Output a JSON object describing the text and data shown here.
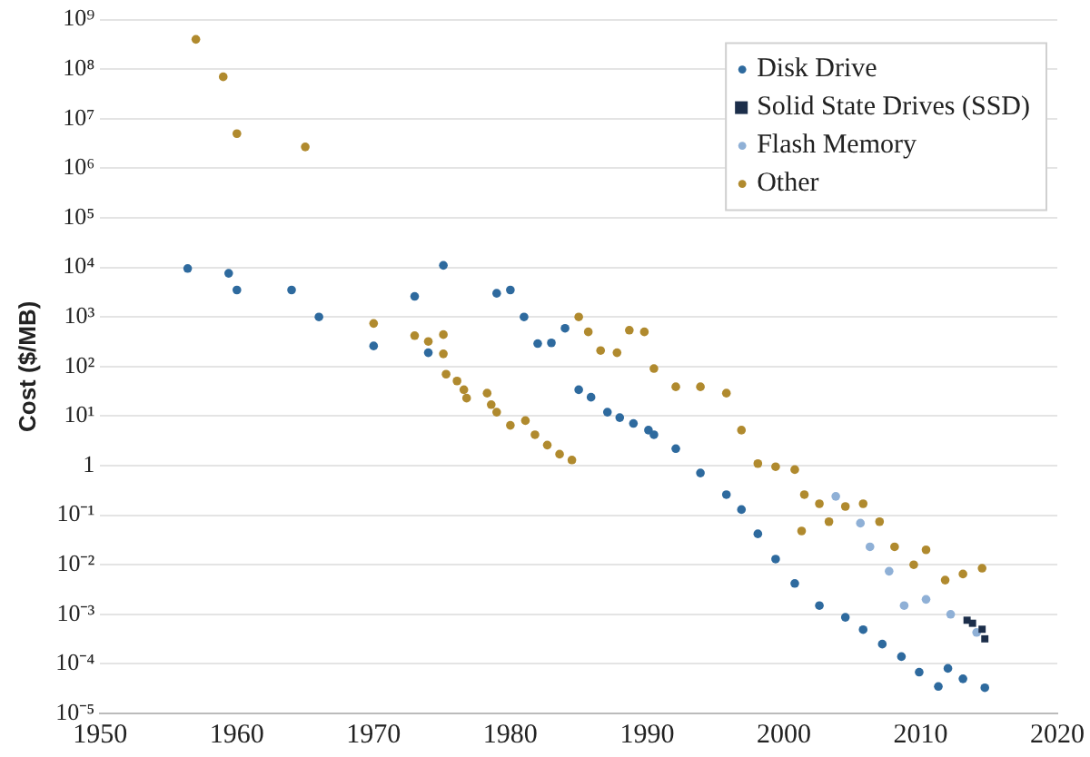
{
  "chart_data": {
    "type": "scatter",
    "ylabel": "Cost ($/MB)",
    "log": "y",
    "grid": "y",
    "legend": "top right",
    "marker": "circle",
    "xlim": [
      1950,
      2020
    ],
    "xticks": [
      1950,
      1960,
      1970,
      1980,
      1990,
      2000,
      2010,
      2020
    ],
    "ylim": [
      1e-05,
      1000000000
    ],
    "yticks": [
      {
        "value": 1e-05,
        "label": "10⁻⁵"
      },
      {
        "value": 0.0001,
        "label": "10⁻⁴"
      },
      {
        "value": 0.001,
        "label": "10⁻³"
      },
      {
        "value": 0.01,
        "label": "10⁻²"
      },
      {
        "value": 0.1,
        "label": "10⁻¹"
      },
      {
        "value": 1,
        "label": "1"
      },
      {
        "value": 10,
        "label": "10¹"
      },
      {
        "value": 100,
        "label": "10²"
      },
      {
        "value": 1000,
        "label": "10³"
      },
      {
        "value": 10000,
        "label": "10⁴"
      },
      {
        "value": 100000,
        "label": "10⁵"
      },
      {
        "value": 1000000,
        "label": "10⁶"
      },
      {
        "value": 10000000,
        "label": "10⁷"
      },
      {
        "value": 100000000,
        "label": "10⁸"
      },
      {
        "value": 1000000000,
        "label": "10⁹"
      }
    ],
    "series": [
      {
        "name": "Disk Drive",
        "color": "#2e6a9e",
        "x": [
          1956.4,
          1959.4,
          1960,
          1964,
          1966,
          1970,
          1973,
          1974,
          1975.1,
          1979,
          1980,
          1981,
          1982,
          1983,
          1984,
          1985,
          1985.9,
          1987.1,
          1988,
          1989,
          1990.1,
          1990.5,
          1992.1,
          1993.9,
          1995.8,
          1996.9,
          1998.1,
          1999.4,
          2000.8,
          2002.6,
          2004.5,
          2005.8,
          2007.2,
          2008.6,
          2009.9,
          2011.3,
          2012,
          2013.1,
          2014.7
        ],
        "values": [
          9500,
          7600,
          3500,
          3500,
          1000,
          260,
          2600,
          190,
          11000,
          3000,
          3500,
          1000,
          290,
          300,
          590,
          34,
          24,
          12,
          9.3,
          7.1,
          5.2,
          4.2,
          2.2,
          0.71,
          0.26,
          0.13,
          0.042,
          0.013,
          0.0042,
          0.0015,
          0.00087,
          0.00049,
          0.00025,
          0.00014,
          6.8e-05,
          3.5e-05,
          8.1e-05,
          5e-05,
          3.3e-05
        ]
      },
      {
        "name": "Solid State Drives (SSD)",
        "color": "#1c2e4a",
        "marker": "square",
        "x": [
          2013.4,
          2013.8,
          2014.5,
          2014.7
        ],
        "values": [
          0.00076,
          0.00066,
          0.0005,
          0.00032
        ]
      },
      {
        "name": "Flash Memory",
        "color": "#8fb0d6",
        "x": [
          2003.8,
          2005.6,
          2006.3,
          2007.7,
          2008.8,
          2010.4,
          2012.2,
          2014.1
        ],
        "values": [
          0.24,
          0.069,
          0.023,
          0.0074,
          0.0015,
          0.002,
          0.001,
          0.00043
        ]
      },
      {
        "name": "Other",
        "color": "#b08a2e",
        "x": [
          1957,
          1959,
          1960,
          1965,
          1970,
          1973,
          1974,
          1975.1,
          1975.1,
          1975.3,
          1976.1,
          1976.6,
          1976.8,
          1978.3,
          1978.6,
          1979,
          1980,
          1981.1,
          1981.8,
          1982.7,
          1983.6,
          1984.5,
          1985,
          1985.7,
          1986.6,
          1987.8,
          1988.7,
          1989.8,
          1990.5,
          1992.1,
          1993.9,
          1995.8,
          1996.9,
          1998.1,
          1999.4,
          2000.8,
          2001.5,
          2001.3,
          2002.6,
          2003.3,
          2004.5,
          2005.8,
          2007,
          2008.1,
          2009.5,
          2010.4,
          2011.8,
          2013.1,
          2014.5
        ],
        "values": [
          400000000,
          70000000,
          5000000,
          2700000,
          740,
          420,
          320,
          440,
          180,
          70,
          51,
          34,
          23,
          29,
          17,
          12,
          6.5,
          8.1,
          4.2,
          2.6,
          1.7,
          1.3,
          1000,
          500,
          210,
          190,
          540,
          500,
          91,
          39,
          39,
          29,
          5.2,
          1.1,
          0.95,
          0.83,
          0.26,
          0.048,
          0.17,
          0.074,
          0.15,
          0.17,
          0.074,
          0.023,
          0.01,
          0.02,
          0.0049,
          0.0065,
          0.0085
        ]
      }
    ]
  }
}
